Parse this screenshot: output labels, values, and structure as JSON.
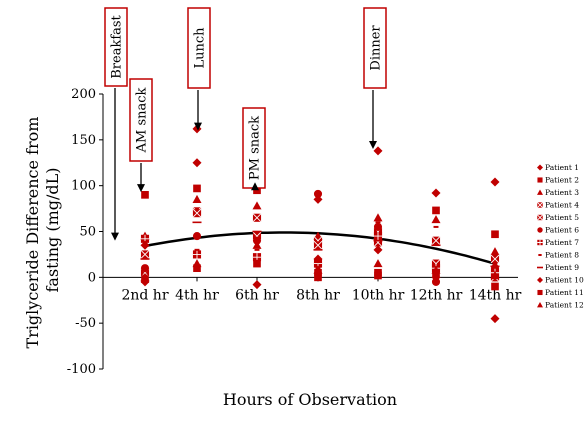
{
  "chart_data": {
    "type": "scatter",
    "title": "",
    "xlabel": "Hours of Observation",
    "ylabel": "Triglyceride Difference from fasting (mg/dL)",
    "categories": [
      "2nd hr",
      "4th hr",
      "6th hr",
      "8th hr",
      "10th hr",
      "12th hr",
      "14th hr"
    ],
    "ylim": [
      -100,
      200
    ],
    "yticks": [
      -100,
      -50,
      0,
      50,
      100,
      150,
      200
    ],
    "grid": false,
    "legend_position": "right",
    "marker_color": "#c00000",
    "series": [
      {
        "name": "Patient 1",
        "marker": "diamond",
        "values": [
          -5,
          162,
          -8,
          85,
          138,
          92,
          104
        ]
      },
      {
        "name": "Patient 2",
        "marker": "square",
        "values": [
          90,
          97,
          95,
          0,
          5,
          73,
          47
        ]
      },
      {
        "name": "Patient 3",
        "marker": "triangle",
        "values": [
          45,
          85,
          78,
          45,
          65,
          63,
          28
        ]
      },
      {
        "name": "Patient 4",
        "marker": "square-x",
        "values": [
          25,
          72,
          65,
          40,
          50,
          40,
          20
        ]
      },
      {
        "name": "Patient 5",
        "marker": "square-x",
        "values": [
          5,
          70,
          45,
          35,
          38,
          15,
          0
        ]
      },
      {
        "name": "Patient 6",
        "marker": "circle",
        "values": [
          10,
          45,
          40,
          91,
          55,
          -5,
          10
        ]
      },
      {
        "name": "Patient 7",
        "marker": "square-plus",
        "values": [
          42,
          25,
          22,
          15,
          45,
          10,
          5
        ]
      },
      {
        "name": "Patient 8",
        "marker": "dash",
        "values": [
          2,
          30,
          30,
          10,
          60,
          55,
          15
        ]
      },
      {
        "name": "Patient 9",
        "marker": "bar",
        "values": [
          20,
          60,
          50,
          30,
          40,
          35,
          12
        ]
      },
      {
        "name": "Patient 10",
        "marker": "diamond",
        "values": [
          35,
          125,
          113,
          20,
          30,
          0,
          -45
        ]
      },
      {
        "name": "Patient 11",
        "marker": "square",
        "values": [
          -2,
          10,
          15,
          5,
          2,
          5,
          -10
        ]
      },
      {
        "name": "Patient 12",
        "marker": "triangle",
        "values": [
          0,
          15,
          35,
          8,
          15,
          8,
          2
        ]
      }
    ],
    "trendline": {
      "type": "polynomial",
      "color": "#000000"
    },
    "annotations": [
      {
        "label": "Breakfast",
        "x_category_index": 0,
        "y": 40
      },
      {
        "label": "AM snack",
        "x_category_index": 0,
        "y": 93
      },
      {
        "label": "Lunch",
        "x_category_index": 1,
        "y": 160
      },
      {
        "label": "PM snack",
        "x_category_index": 2,
        "y": 95
      },
      {
        "label": "Dinner",
        "x_category_index": 4,
        "y": 140
      }
    ]
  }
}
